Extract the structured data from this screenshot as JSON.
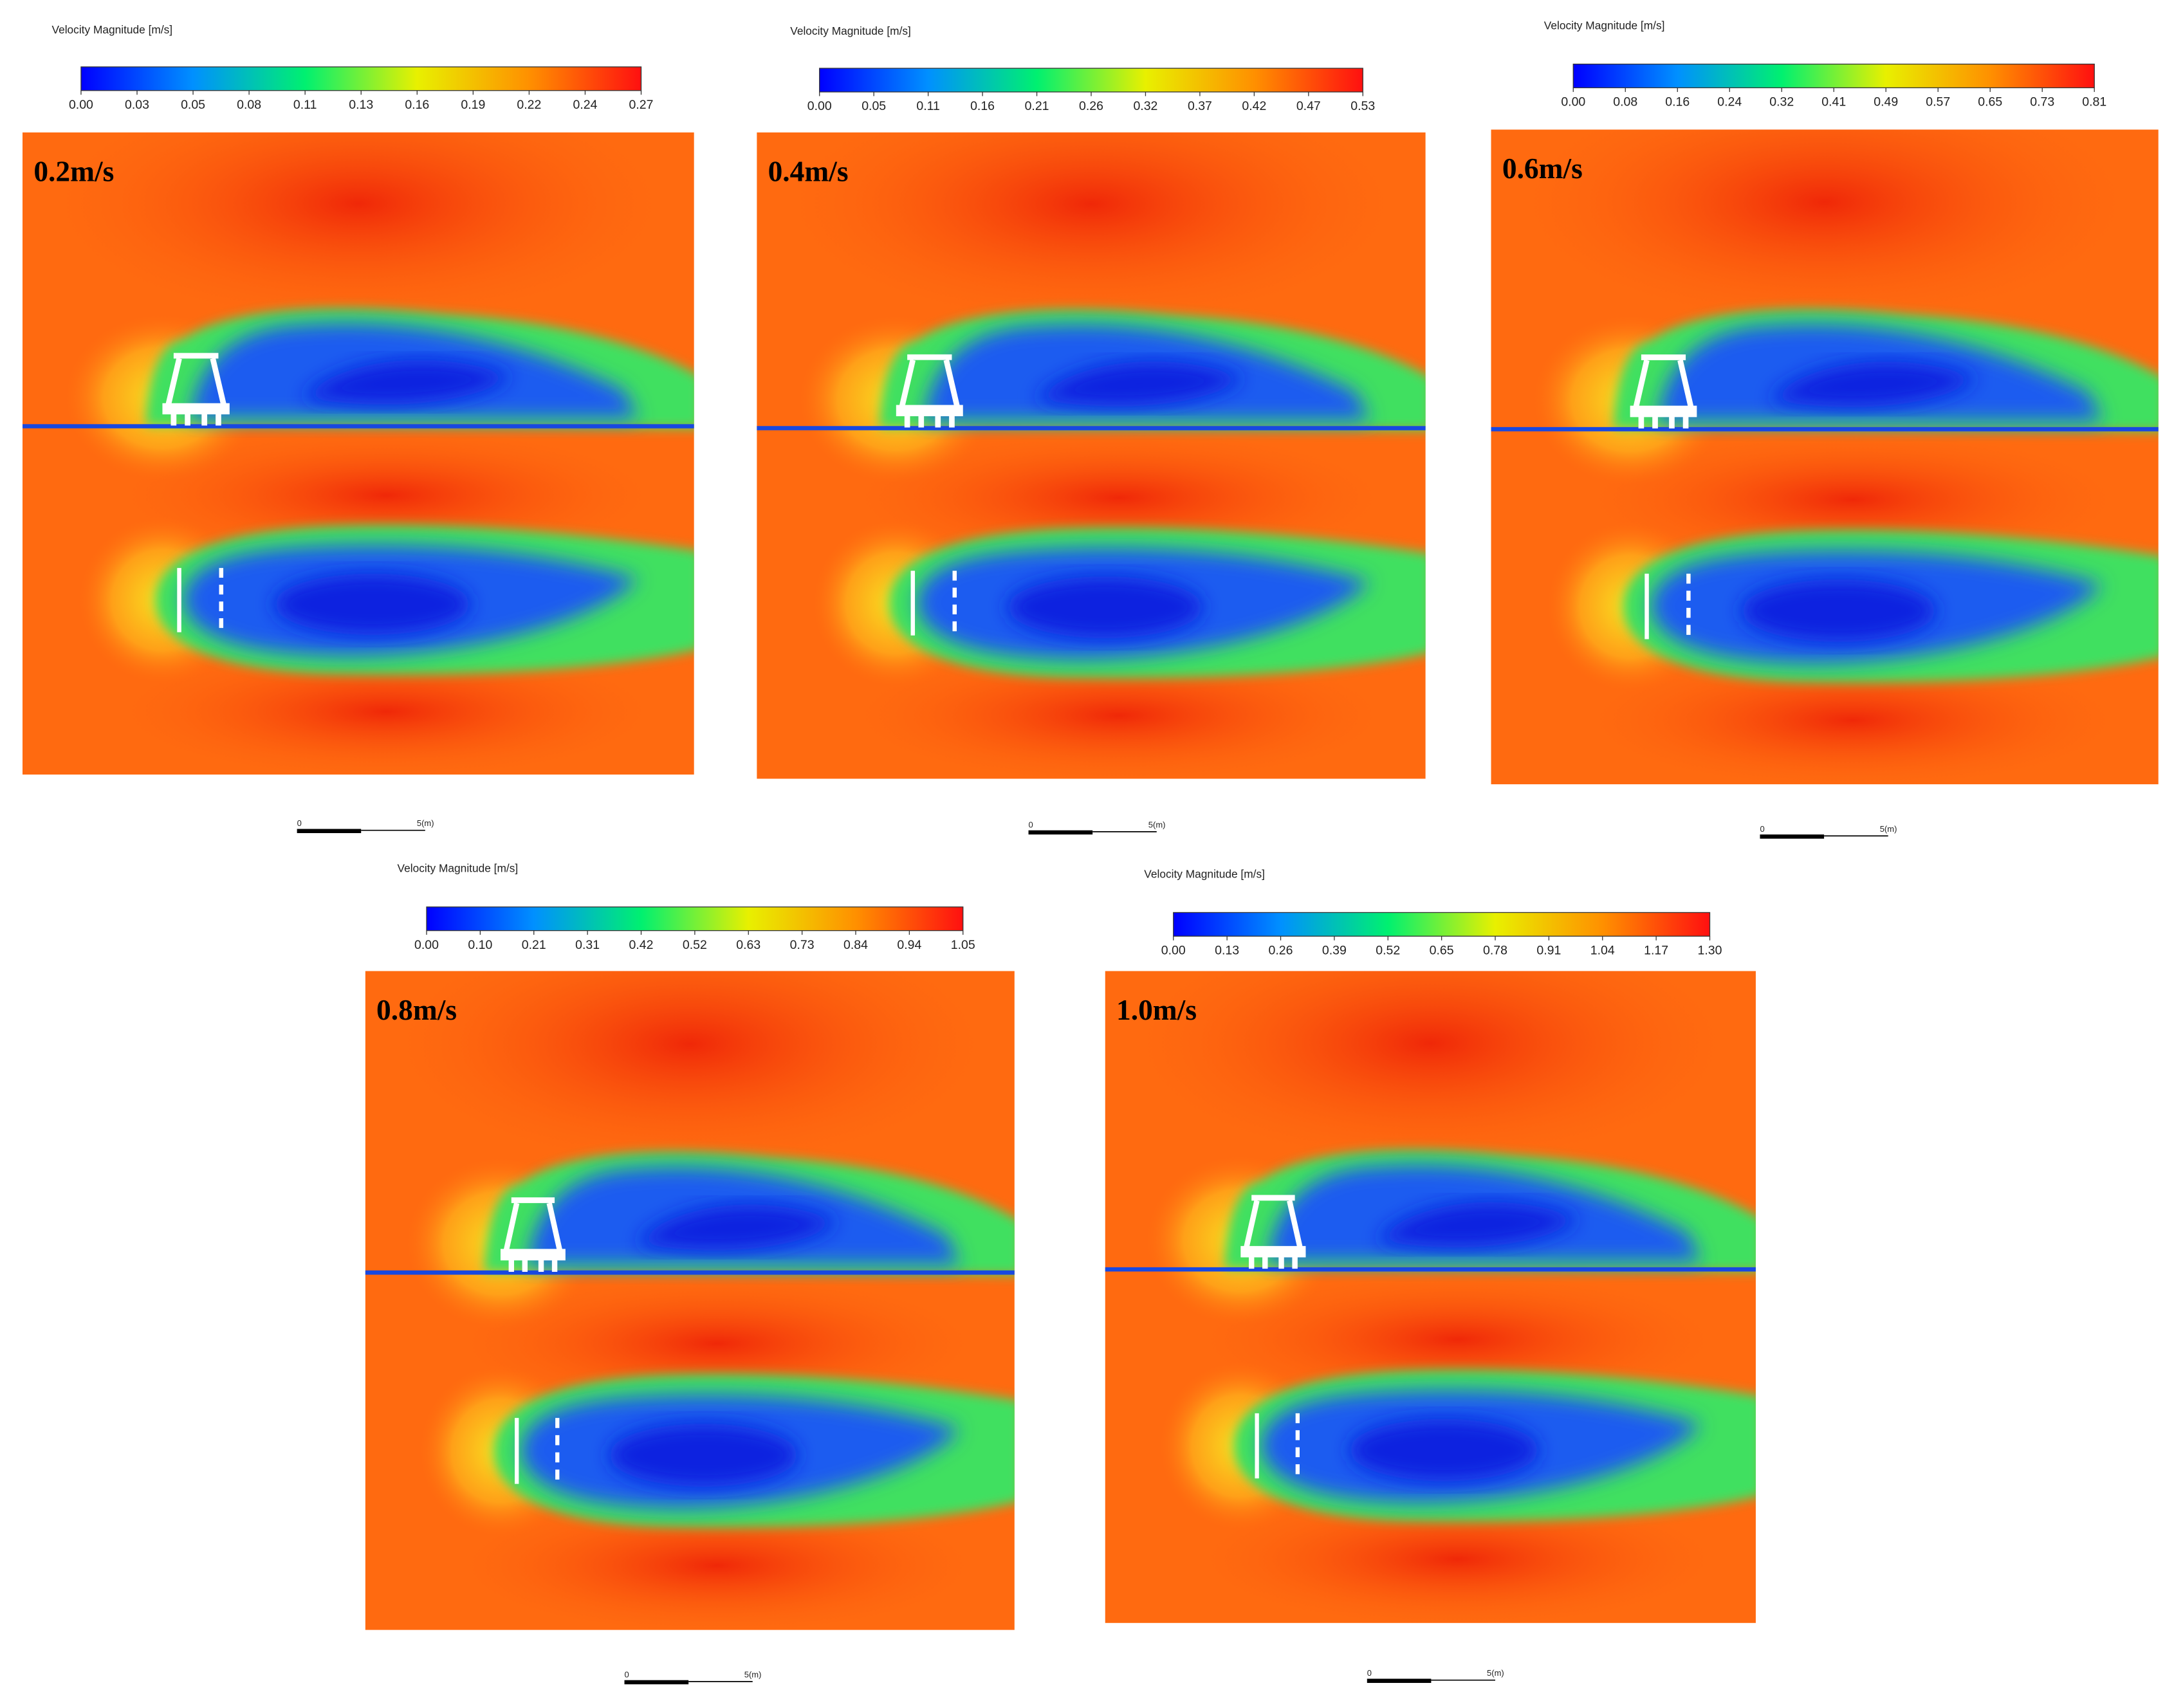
{
  "panels": [
    {
      "label": "0.2m/s",
      "colorbar_title": "Velocity Magnitude [m/s]",
      "ticks": [
        "0.00",
        "0.03",
        "0.05",
        "0.08",
        "0.11",
        "0.13",
        "0.16",
        "0.19",
        "0.22",
        "0.24",
        "0.27"
      ],
      "scale_bar": [
        "0",
        "5(m)"
      ]
    },
    {
      "label": "0.4m/s",
      "colorbar_title": "Velocity Magnitude [m/s]",
      "ticks": [
        "0.00",
        "0.05",
        "0.11",
        "0.16",
        "0.21",
        "0.26",
        "0.32",
        "0.37",
        "0.42",
        "0.47",
        "0.53"
      ],
      "scale_bar": [
        "0",
        "5(m)"
      ]
    },
    {
      "label": "0.6m/s",
      "colorbar_title": "Velocity Magnitude [m/s]",
      "ticks": [
        "0.00",
        "0.08",
        "0.16",
        "0.24",
        "0.32",
        "0.41",
        "0.49",
        "0.57",
        "0.65",
        "0.73",
        "0.81"
      ],
      "scale_bar": [
        "0",
        "5(m)"
      ]
    },
    {
      "label": "0.8m/s",
      "colorbar_title": "Velocity Magnitude [m/s]",
      "ticks": [
        "0.00",
        "0.10",
        "0.21",
        "0.31",
        "0.42",
        "0.52",
        "0.63",
        "0.73",
        "0.84",
        "0.94",
        "1.05"
      ],
      "scale_bar": [
        "0",
        "5(m)"
      ]
    },
    {
      "label": "1.0m/s",
      "colorbar_title": "Velocity Magnitude [m/s]",
      "ticks": [
        "0.00",
        "0.13",
        "0.26",
        "0.39",
        "0.52",
        "0.65",
        "0.78",
        "0.91",
        "1.04",
        "1.17",
        "1.30"
      ],
      "scale_bar": [
        "0",
        "5(m)"
      ]
    }
  ]
}
